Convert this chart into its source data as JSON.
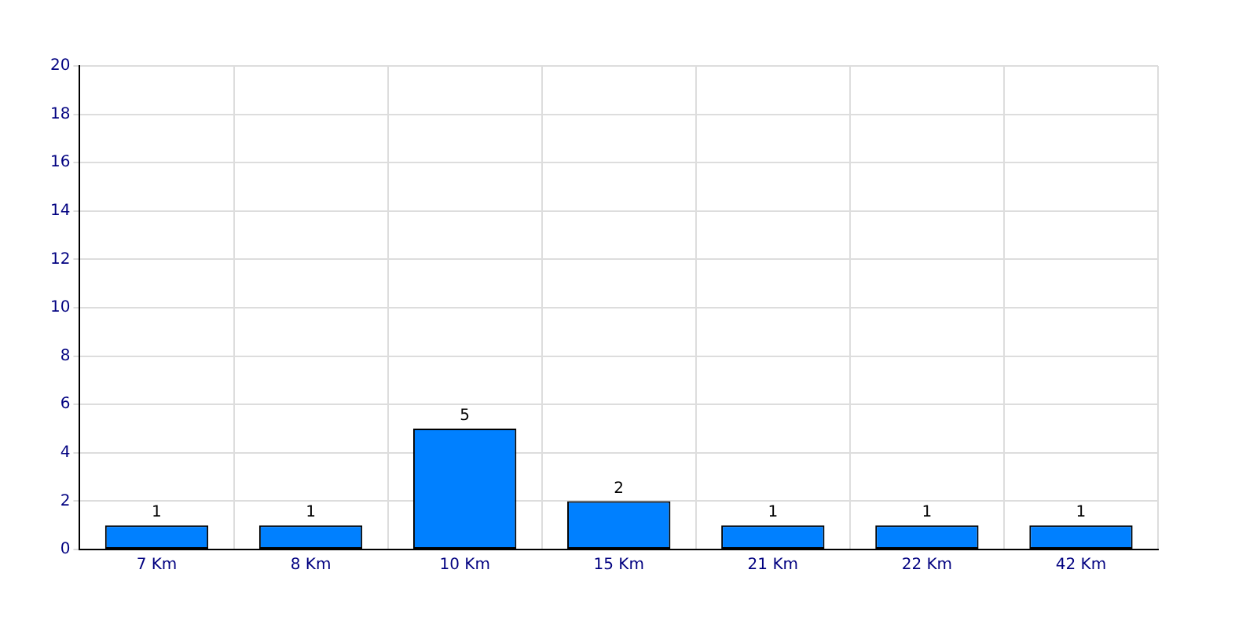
{
  "chart_data": {
    "type": "bar",
    "categories": [
      "7 Km",
      "8 Km",
      "10 Km",
      "15 Km",
      "21 Km",
      "22 Km",
      "42 Km"
    ],
    "values": [
      1,
      1,
      5,
      2,
      1,
      1,
      1
    ],
    "color": "#0080ff",
    "ylim": [
      0,
      20
    ],
    "yticks": [
      0,
      2,
      4,
      6,
      8,
      10,
      12,
      14,
      16,
      18,
      20
    ],
    "grid": true,
    "data_labels": true
  }
}
